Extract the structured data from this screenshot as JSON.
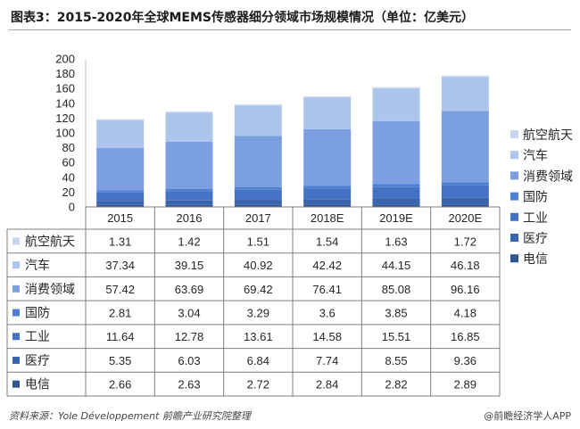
{
  "title": "图表3：2015-2020年全球MEMS传感器细分领域市场规模情况（单位：亿美元）",
  "source": "资料来源：Yole  Développement   前瞻产业研究院整理",
  "credit": "@前瞻经济学人APP",
  "chart_data": {
    "type": "bar",
    "stacked": true,
    "categories": [
      "2015",
      "2016",
      "2017",
      "2018E",
      "2019E",
      "2020E"
    ],
    "ylim": [
      0,
      200
    ],
    "yticks": [
      0,
      20,
      40,
      60,
      80,
      100,
      120,
      140,
      160,
      180,
      200
    ],
    "legend_position": "right",
    "series": [
      {
        "name": "电信",
        "color": "#2f5597",
        "values": [
          2.66,
          2.63,
          2.72,
          2.84,
          2.82,
          2.89
        ]
      },
      {
        "name": "医疗",
        "color": "#3a64ad",
        "values": [
          5.35,
          6.03,
          6.84,
          7.74,
          8.55,
          9.36
        ]
      },
      {
        "name": "工业",
        "color": "#4472c4",
        "values": [
          11.64,
          12.78,
          13.61,
          14.58,
          15.51,
          16.85
        ]
      },
      {
        "name": "国防",
        "color": "#4e7fd3",
        "values": [
          2.81,
          3.04,
          3.29,
          3.6,
          3.85,
          4.18
        ]
      },
      {
        "name": "消费领域",
        "color": "#7b9fe0",
        "values": [
          57.42,
          63.69,
          69.42,
          76.41,
          85.08,
          96.16
        ]
      },
      {
        "name": "汽车",
        "color": "#adc4ec",
        "values": [
          37.34,
          39.15,
          40.92,
          42.42,
          44.15,
          46.18
        ]
      },
      {
        "name": "航空航天",
        "color": "#c7d5ef",
        "values": [
          1.31,
          1.42,
          1.51,
          1.54,
          1.63,
          1.72
        ]
      }
    ],
    "table_rows": [
      {
        "name": "航空航天",
        "color": "#c7d5ef",
        "values": [
          "1.31",
          "1.42",
          "1.51",
          "1.54",
          "1.63",
          "1.72"
        ]
      },
      {
        "name": "汽车",
        "color": "#adc4ec",
        "values": [
          "37.34",
          "39.15",
          "40.92",
          "42.42",
          "44.15",
          "46.18"
        ]
      },
      {
        "name": "消费领域",
        "color": "#7b9fe0",
        "values": [
          "57.42",
          "63.69",
          "69.42",
          "76.41",
          "85.08",
          "96.16"
        ]
      },
      {
        "name": "国防",
        "color": "#4e7fd3",
        "values": [
          "2.81",
          "3.04",
          "3.29",
          "3.6",
          "3.85",
          "4.18"
        ]
      },
      {
        "name": "工业",
        "color": "#4472c4",
        "values": [
          "11.64",
          "12.78",
          "13.61",
          "14.58",
          "15.51",
          "16.85"
        ]
      },
      {
        "name": "医疗",
        "color": "#3a64ad",
        "values": [
          "5.35",
          "6.03",
          "6.84",
          "7.74",
          "8.55",
          "9.36"
        ]
      },
      {
        "name": "电信",
        "color": "#2f5597",
        "values": [
          "2.66",
          "2.63",
          "2.72",
          "2.84",
          "2.82",
          "2.89"
        ]
      }
    ],
    "legend": [
      {
        "name": "航空航天",
        "color": "#c7d5ef"
      },
      {
        "name": "汽车",
        "color": "#adc4ec"
      },
      {
        "name": "消费领域",
        "color": "#7b9fe0"
      },
      {
        "name": "国防",
        "color": "#4e7fd3"
      },
      {
        "name": "工业",
        "color": "#4472c4"
      },
      {
        "name": "医疗",
        "color": "#3a64ad"
      },
      {
        "name": "电信",
        "color": "#2f5597"
      }
    ]
  }
}
